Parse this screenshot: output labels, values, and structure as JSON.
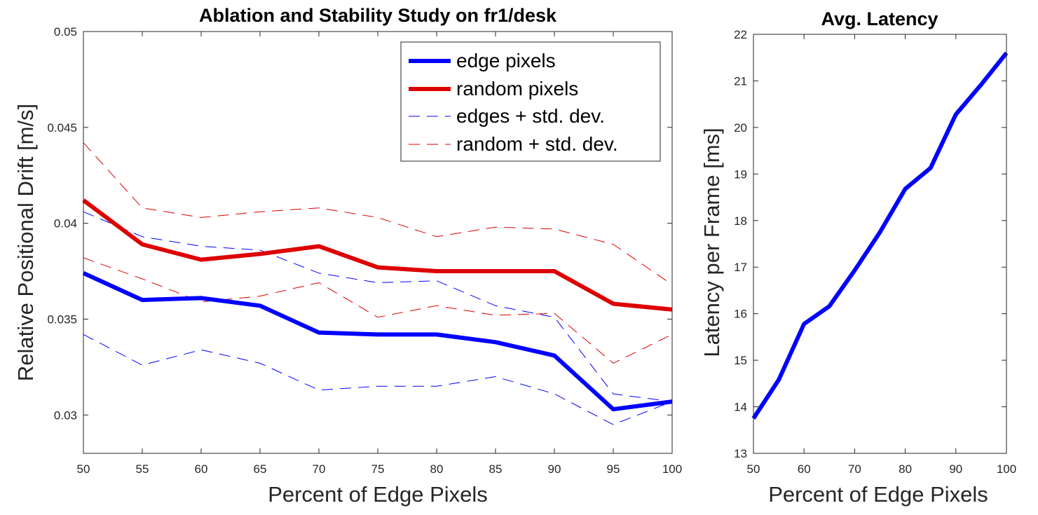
{
  "chart_data": [
    {
      "type": "line",
      "title": "Ablation and Stability Study on fr1/desk",
      "xlabel": "Percent of Edge Pixels",
      "ylabel": "Relative Positional Drift [m/s]",
      "xlim": [
        50,
        100
      ],
      "ylim": [
        0.028,
        0.05
      ],
      "xticks": [
        50,
        55,
        60,
        65,
        70,
        75,
        80,
        85,
        90,
        95,
        100
      ],
      "yticks": [
        0.03,
        0.035,
        0.04,
        0.045,
        0.05
      ],
      "ytick_labels": [
        "0.03",
        "0.035",
        "0.04",
        "0.045",
        "0.05"
      ],
      "legend_position": "top-right",
      "x": [
        50,
        55,
        60,
        65,
        70,
        75,
        80,
        85,
        90,
        95,
        100
      ],
      "series": [
        {
          "name": "edge pixels",
          "color": "#0000ff",
          "style": "solid",
          "values": [
            0.0374,
            0.036,
            0.0361,
            0.0357,
            0.0343,
            0.0342,
            0.0342,
            0.0338,
            0.0331,
            0.0303,
            0.0307
          ]
        },
        {
          "name": "random pixels",
          "color": "#dd0000",
          "style": "solid",
          "values": [
            0.0412,
            0.0389,
            0.0381,
            0.0384,
            0.0388,
            0.0377,
            0.0375,
            0.0375,
            0.0375,
            0.0358,
            0.0355
          ]
        },
        {
          "name": "edges + std. dev.",
          "color": "#0000ff",
          "style": "dashed",
          "values": [
            0.0406,
            0.0393,
            0.0388,
            0.0386,
            0.0374,
            0.0369,
            0.037,
            0.0357,
            0.0351,
            0.0311,
            0.0307
          ]
        },
        {
          "name": "",
          "color": "#0000ff",
          "style": "dashed",
          "values": [
            0.0342,
            0.0326,
            0.0334,
            0.0327,
            0.0313,
            0.0315,
            0.0315,
            0.032,
            0.0311,
            0.0295,
            0.0307
          ]
        },
        {
          "name": "random + std. dev.",
          "color": "#dd0000",
          "style": "dashed",
          "values": [
            0.0442,
            0.0408,
            0.0403,
            0.0406,
            0.0408,
            0.0403,
            0.0393,
            0.0398,
            0.0397,
            0.0389,
            0.0368
          ]
        },
        {
          "name": "",
          "color": "#dd0000",
          "style": "dashed",
          "values": [
            0.0382,
            0.0371,
            0.0359,
            0.0362,
            0.0369,
            0.0351,
            0.0357,
            0.0352,
            0.0353,
            0.0327,
            0.0342
          ]
        }
      ]
    },
    {
      "type": "line",
      "title": "Avg. Latency",
      "xlabel": "Percent of Edge Pixels",
      "ylabel": "Latency per Frame [ms]",
      "xlim": [
        50,
        100
      ],
      "ylim": [
        13,
        22
      ],
      "xticks": [
        50,
        60,
        70,
        80,
        90,
        100
      ],
      "yticks": [
        13,
        14,
        15,
        16,
        17,
        18,
        19,
        20,
        21,
        22
      ],
      "ytick_labels": [
        "13",
        "14",
        "15",
        "16",
        "17",
        "18",
        "19",
        "20",
        "21",
        "22"
      ],
      "x": [
        50,
        55,
        60,
        65,
        70,
        75,
        80,
        85,
        90,
        95,
        100
      ],
      "series": [
        {
          "name": "latency",
          "color": "#0000ff",
          "style": "solid",
          "values": [
            13.75,
            14.58,
            15.78,
            16.16,
            16.93,
            17.75,
            18.68,
            19.13,
            20.28,
            20.92,
            21.6
          ]
        }
      ]
    }
  ]
}
